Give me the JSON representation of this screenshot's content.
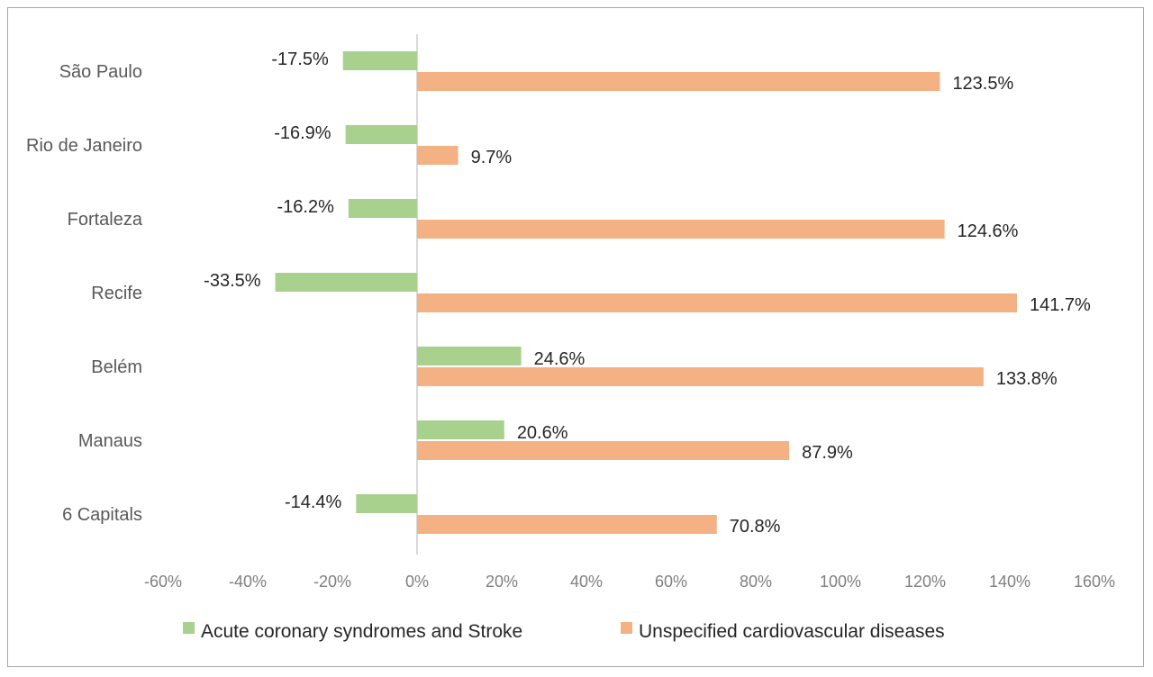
{
  "chart_data": {
    "type": "bar",
    "orientation": "horizontal",
    "categories": [
      "São Paulo",
      "Rio de Janeiro",
      "Fortaleza",
      "Recife",
      "Belém",
      "Manaus",
      "6 Capitals"
    ],
    "series": [
      {
        "name": "Acute coronary syndromes and Stroke",
        "color": "#a9d18e",
        "values": [
          -17.5,
          -16.9,
          -16.2,
          -33.5,
          24.6,
          20.6,
          -14.4
        ],
        "labels": [
          "-17.5%",
          "-16.9%",
          "-16.2%",
          "-33.5%",
          "24.6%",
          "20.6%",
          "-14.4%"
        ]
      },
      {
        "name": "Unspecified cardiovascular diseases",
        "color": "#f4b183",
        "values": [
          123.5,
          9.7,
          124.6,
          141.7,
          133.8,
          87.9,
          70.8
        ],
        "labels": [
          "123.5%",
          "9.7%",
          "124.6%",
          "141.7%",
          "133.8%",
          "87.9%",
          "70.8%"
        ]
      }
    ],
    "xlim": [
      -60,
      160
    ],
    "xticks": [
      "-60%",
      "-40%",
      "-20%",
      "0%",
      "20%",
      "40%",
      "60%",
      "80%",
      "100%",
      "120%",
      "140%",
      "160%"
    ],
    "xtick_values": [
      -60,
      -40,
      -20,
      0,
      20,
      40,
      60,
      80,
      100,
      120,
      140,
      160
    ],
    "grid": false,
    "legend_position": "bottom",
    "axis_color": "#d9d9d9"
  }
}
